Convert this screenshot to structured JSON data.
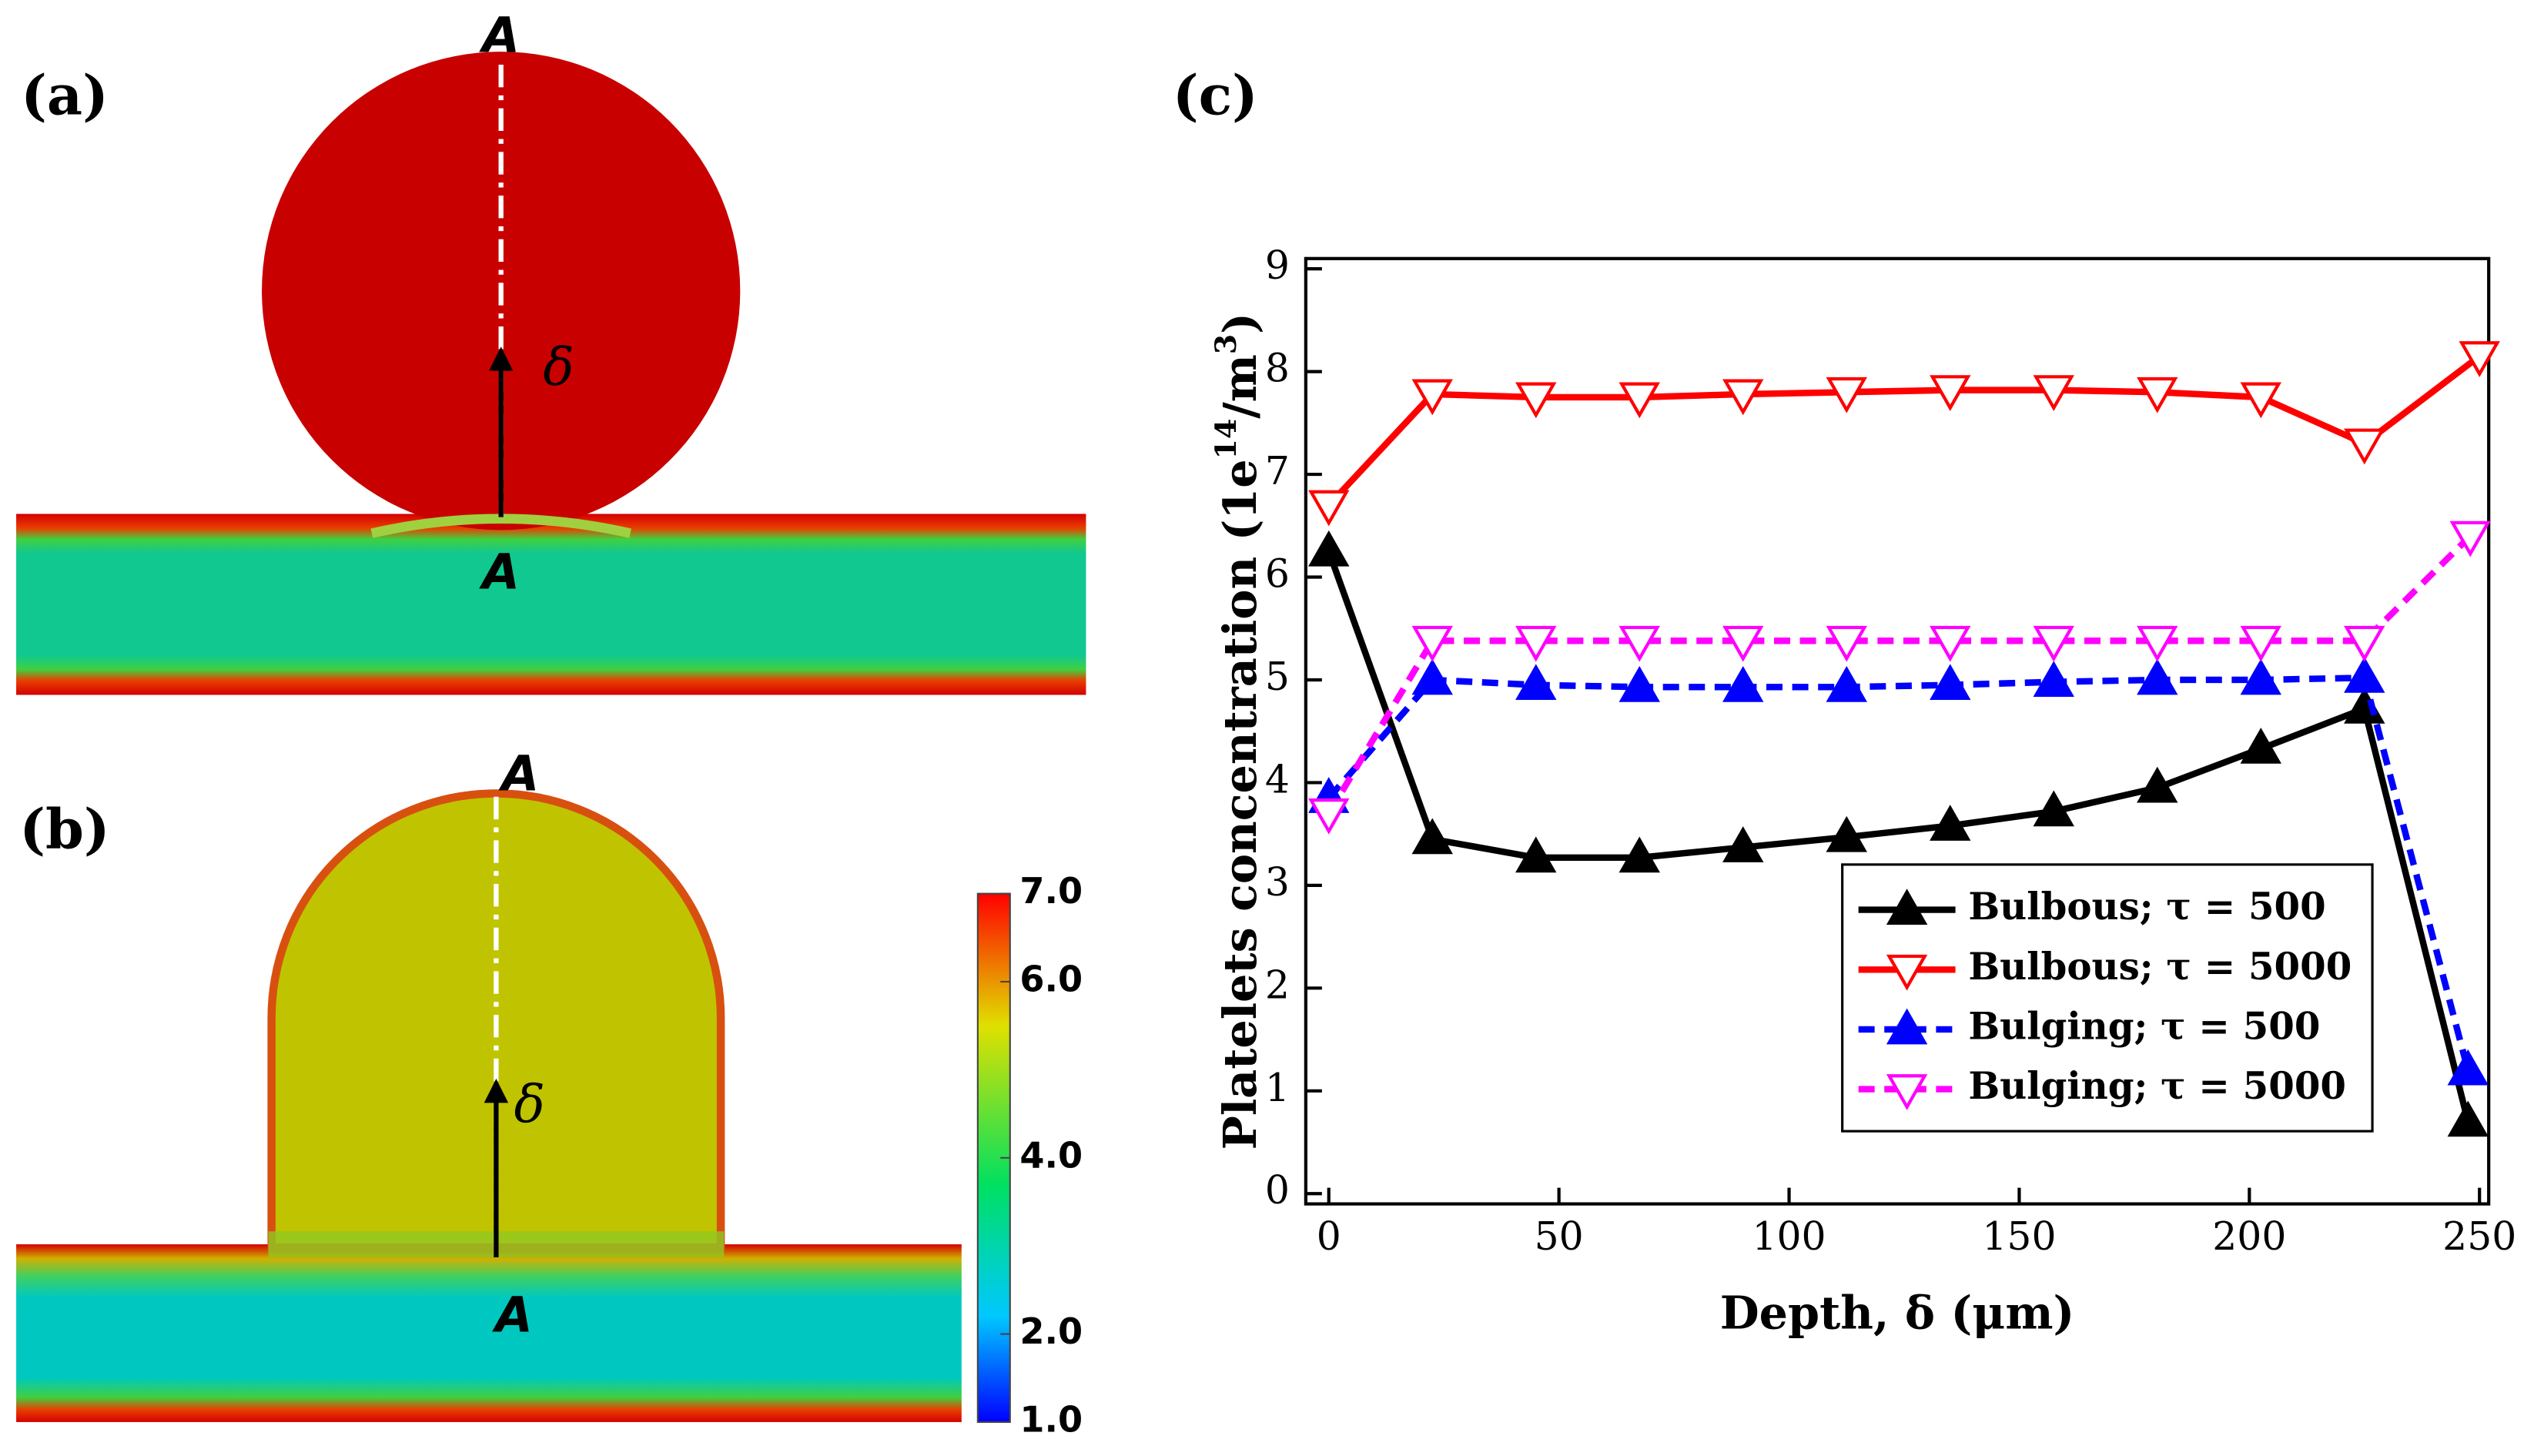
{
  "panels": {
    "labels": [
      "(a)",
      "(b)",
      "(c)"
    ],
    "a": {
      "top": "A",
      "bottom": "A",
      "arrow": "δ"
    },
    "b": {
      "top": "A",
      "bottom": "A",
      "arrow": "δ"
    }
  },
  "colorbar": {
    "lim": [
      1,
      7
    ],
    "ticks": [
      {
        "value": 1,
        "label": "1.0"
      },
      {
        "value": 2,
        "label": "2.0"
      },
      {
        "value": 4,
        "label": "4.0"
      },
      {
        "value": 6,
        "label": "6.0"
      },
      {
        "value": 7,
        "label": "7.0"
      }
    ]
  },
  "chart_data": {
    "type": "line",
    "xlabel": "Depth, δ (μm)",
    "ylabel": [
      "Platelets concentration (1e",
      "14",
      "/m",
      "3",
      ")"
    ],
    "xlim": [
      -5,
      252
    ],
    "ylim": [
      -0.1,
      9.1
    ],
    "xticks": [
      0,
      50,
      100,
      150,
      200,
      250
    ],
    "yticks": [
      0,
      1,
      2,
      3,
      4,
      5,
      6,
      7,
      8,
      9
    ],
    "legend": "lower right",
    "series": [
      {
        "name": "Bulbous; τ = 500",
        "color": "#000000",
        "dash": false,
        "marker": "up-filled",
        "x": [
          0,
          22.5,
          45,
          67.5,
          90,
          112.5,
          135,
          157.5,
          180,
          202.5,
          225,
          247.5
        ],
        "values": [
          6.25,
          3.45,
          3.27,
          3.27,
          3.37,
          3.47,
          3.58,
          3.72,
          3.95,
          4.33,
          4.72,
          0.7
        ]
      },
      {
        "name": "Bulbous; τ = 5000",
        "color": "#ff0000",
        "dash": false,
        "marker": "down-open",
        "x": [
          0,
          22.5,
          45,
          67.5,
          90,
          112.5,
          135,
          157.5,
          180,
          202.5,
          225,
          250
        ],
        "values": [
          6.7,
          7.78,
          7.75,
          7.75,
          7.78,
          7.8,
          7.82,
          7.82,
          7.8,
          7.75,
          7.3,
          8.15
        ]
      },
      {
        "name": "Bulging; τ = 500",
        "color": "#0000ff",
        "dash": true,
        "marker": "up-filled",
        "x": [
          0,
          22.5,
          45,
          67.5,
          90,
          112.5,
          135,
          157.5,
          180,
          202.5,
          225,
          247.5
        ],
        "values": [
          3.85,
          5.0,
          4.95,
          4.93,
          4.93,
          4.93,
          4.95,
          4.98,
          5.0,
          5.0,
          5.02,
          1.2
        ]
      },
      {
        "name": "Bulging; τ = 5000",
        "color": "#ff00ff",
        "dash": true,
        "marker": "down-open",
        "x": [
          0,
          22.5,
          45,
          67.5,
          90,
          112.5,
          135,
          157.5,
          180,
          202.5,
          225,
          248
        ],
        "values": [
          3.7,
          5.38,
          5.38,
          5.38,
          5.38,
          5.38,
          5.38,
          5.38,
          5.38,
          5.38,
          5.38,
          6.4
        ]
      }
    ]
  }
}
